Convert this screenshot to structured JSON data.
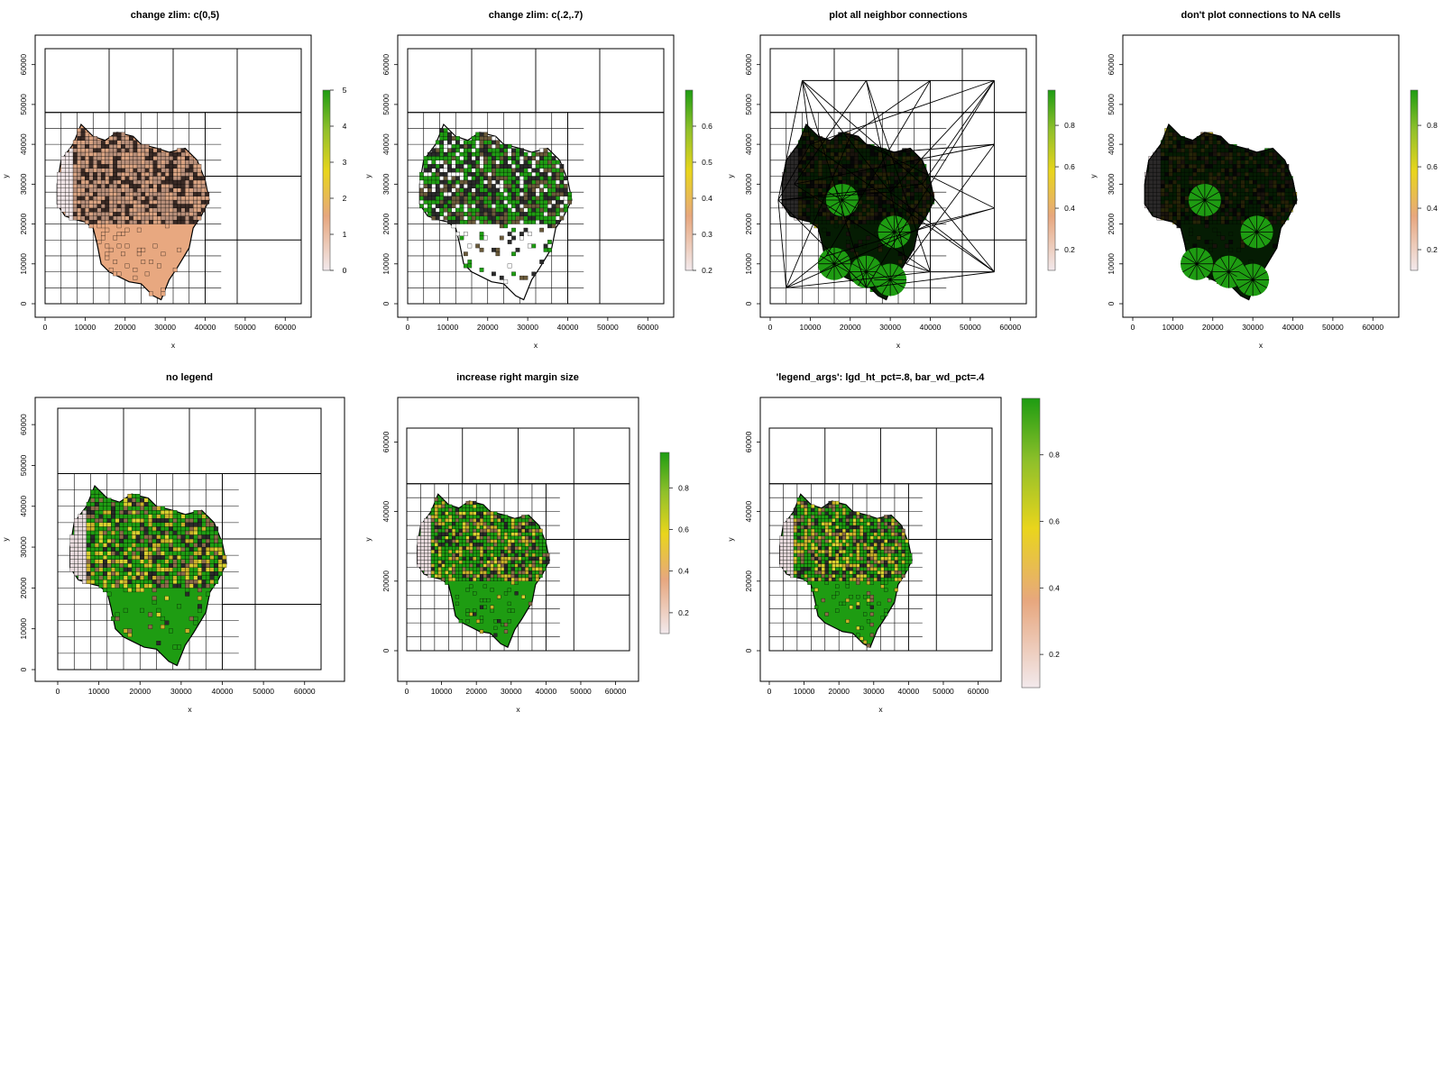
{
  "colors": {
    "frame": "#000000",
    "background": "#ffffff",
    "legend_ramp": [
      "#f2e9ec",
      "#e7a77e",
      "#e9d51c",
      "#90c02a",
      "#1e9c12"
    ],
    "cell_fill_low": "#e8a880",
    "cell_fill_high": "#1e9c12",
    "network_lines": "#000000"
  },
  "chart_data": [
    {
      "type": "heatmap",
      "title": "change zlim: c(0,5)",
      "xlabel": "x",
      "ylabel": "y",
      "xlim": [
        0,
        64000
      ],
      "ylim": [
        0,
        64000
      ],
      "x_ticks": [
        "0",
        "10000",
        "20000",
        "30000",
        "40000",
        "50000",
        "60000"
      ],
      "y_ticks": [
        "0",
        "10000",
        "20000",
        "30000",
        "40000",
        "50000",
        "60000"
      ],
      "legend": {
        "zlim": [
          0,
          5
        ],
        "ticks": [
          "0",
          "1",
          "2",
          "3",
          "4",
          "5"
        ]
      },
      "fill_style": "low",
      "show_cells": true,
      "network": "none"
    },
    {
      "type": "heatmap",
      "title": "change zlim: c(.2,.7)",
      "xlabel": "x",
      "ylabel": "y",
      "xlim": [
        0,
        64000
      ],
      "ylim": [
        0,
        64000
      ],
      "x_ticks": [
        "0",
        "10000",
        "20000",
        "30000",
        "40000",
        "50000",
        "60000"
      ],
      "y_ticks": [
        "0",
        "10000",
        "20000",
        "30000",
        "40000",
        "50000",
        "60000"
      ],
      "legend": {
        "zlim": [
          0.2,
          0.7
        ],
        "ticks": [
          "0.2",
          "0.3",
          "0.4",
          "0.5",
          "0.6"
        ]
      },
      "fill_style": "clipped",
      "show_cells": true,
      "network": "none"
    },
    {
      "type": "heatmap",
      "title": "plot all neighbor connections",
      "xlabel": "x",
      "ylabel": "y",
      "xlim": [
        0,
        64000
      ],
      "ylim": [
        0,
        64000
      ],
      "x_ticks": [
        "0",
        "10000",
        "20000",
        "30000",
        "40000",
        "50000",
        "60000"
      ],
      "y_ticks": [
        "0",
        "10000",
        "20000",
        "30000",
        "40000",
        "50000",
        "60000"
      ],
      "legend": {
        "zlim": [
          0.1,
          0.97
        ],
        "ticks": [
          "0.2",
          "0.4",
          "0.6",
          "0.8"
        ]
      },
      "fill_style": "full",
      "show_cells": true,
      "network": "all"
    },
    {
      "type": "heatmap",
      "title": "don't plot connections to NA cells",
      "xlabel": "x",
      "ylabel": "y",
      "xlim": [
        0,
        64000
      ],
      "ylim": [
        0,
        64000
      ],
      "x_ticks": [
        "0",
        "10000",
        "20000",
        "30000",
        "40000",
        "50000",
        "60000"
      ],
      "y_ticks": [
        "0",
        "10000",
        "20000",
        "30000",
        "40000",
        "50000",
        "60000"
      ],
      "legend": {
        "zlim": [
          0.1,
          0.97
        ],
        "ticks": [
          "0.2",
          "0.4",
          "0.6",
          "0.8"
        ]
      },
      "fill_style": "full",
      "show_cells": false,
      "network": "valid"
    },
    {
      "type": "heatmap",
      "title": "no legend",
      "xlabel": "x",
      "ylabel": "y",
      "xlim": [
        0,
        64000
      ],
      "ylim": [
        0,
        64000
      ],
      "x_ticks": [
        "0",
        "10000",
        "20000",
        "30000",
        "40000",
        "50000",
        "60000"
      ],
      "y_ticks": [
        "0",
        "10000",
        "20000",
        "30000",
        "40000",
        "50000",
        "60000"
      ],
      "legend": null,
      "fill_style": "full",
      "show_cells": true,
      "network": "none"
    },
    {
      "type": "heatmap",
      "title": "increase right margin size",
      "xlabel": "x",
      "ylabel": "y",
      "xlim": [
        0,
        64000
      ],
      "ylim": [
        0,
        64000
      ],
      "x_ticks": [
        "0",
        "10000",
        "20000",
        "30000",
        "40000",
        "50000",
        "60000"
      ],
      "y_ticks": [
        "0",
        "20000",
        "40000",
        "60000"
      ],
      "legend": {
        "zlim": [
          0.1,
          0.97
        ],
        "ticks": [
          "0.2",
          "0.4",
          "0.6",
          "0.8"
        ]
      },
      "fill_style": "full",
      "show_cells": true,
      "network": "none"
    },
    {
      "type": "heatmap",
      "title": "'legend_args': lgd_ht_pct=.8, bar_wd_pct=.4",
      "xlabel": "x",
      "ylabel": "y",
      "xlim": [
        0,
        64000
      ],
      "ylim": [
        0,
        64000
      ],
      "x_ticks": [
        "0",
        "10000",
        "20000",
        "30000",
        "40000",
        "50000",
        "60000"
      ],
      "y_ticks": [
        "0",
        "20000",
        "40000",
        "60000"
      ],
      "legend": {
        "zlim": [
          0.1,
          0.97
        ],
        "ticks": [
          "0.2",
          "0.4",
          "0.6",
          "0.8"
        ]
      },
      "fill_style": "full",
      "show_cells": true,
      "network": "none"
    }
  ]
}
